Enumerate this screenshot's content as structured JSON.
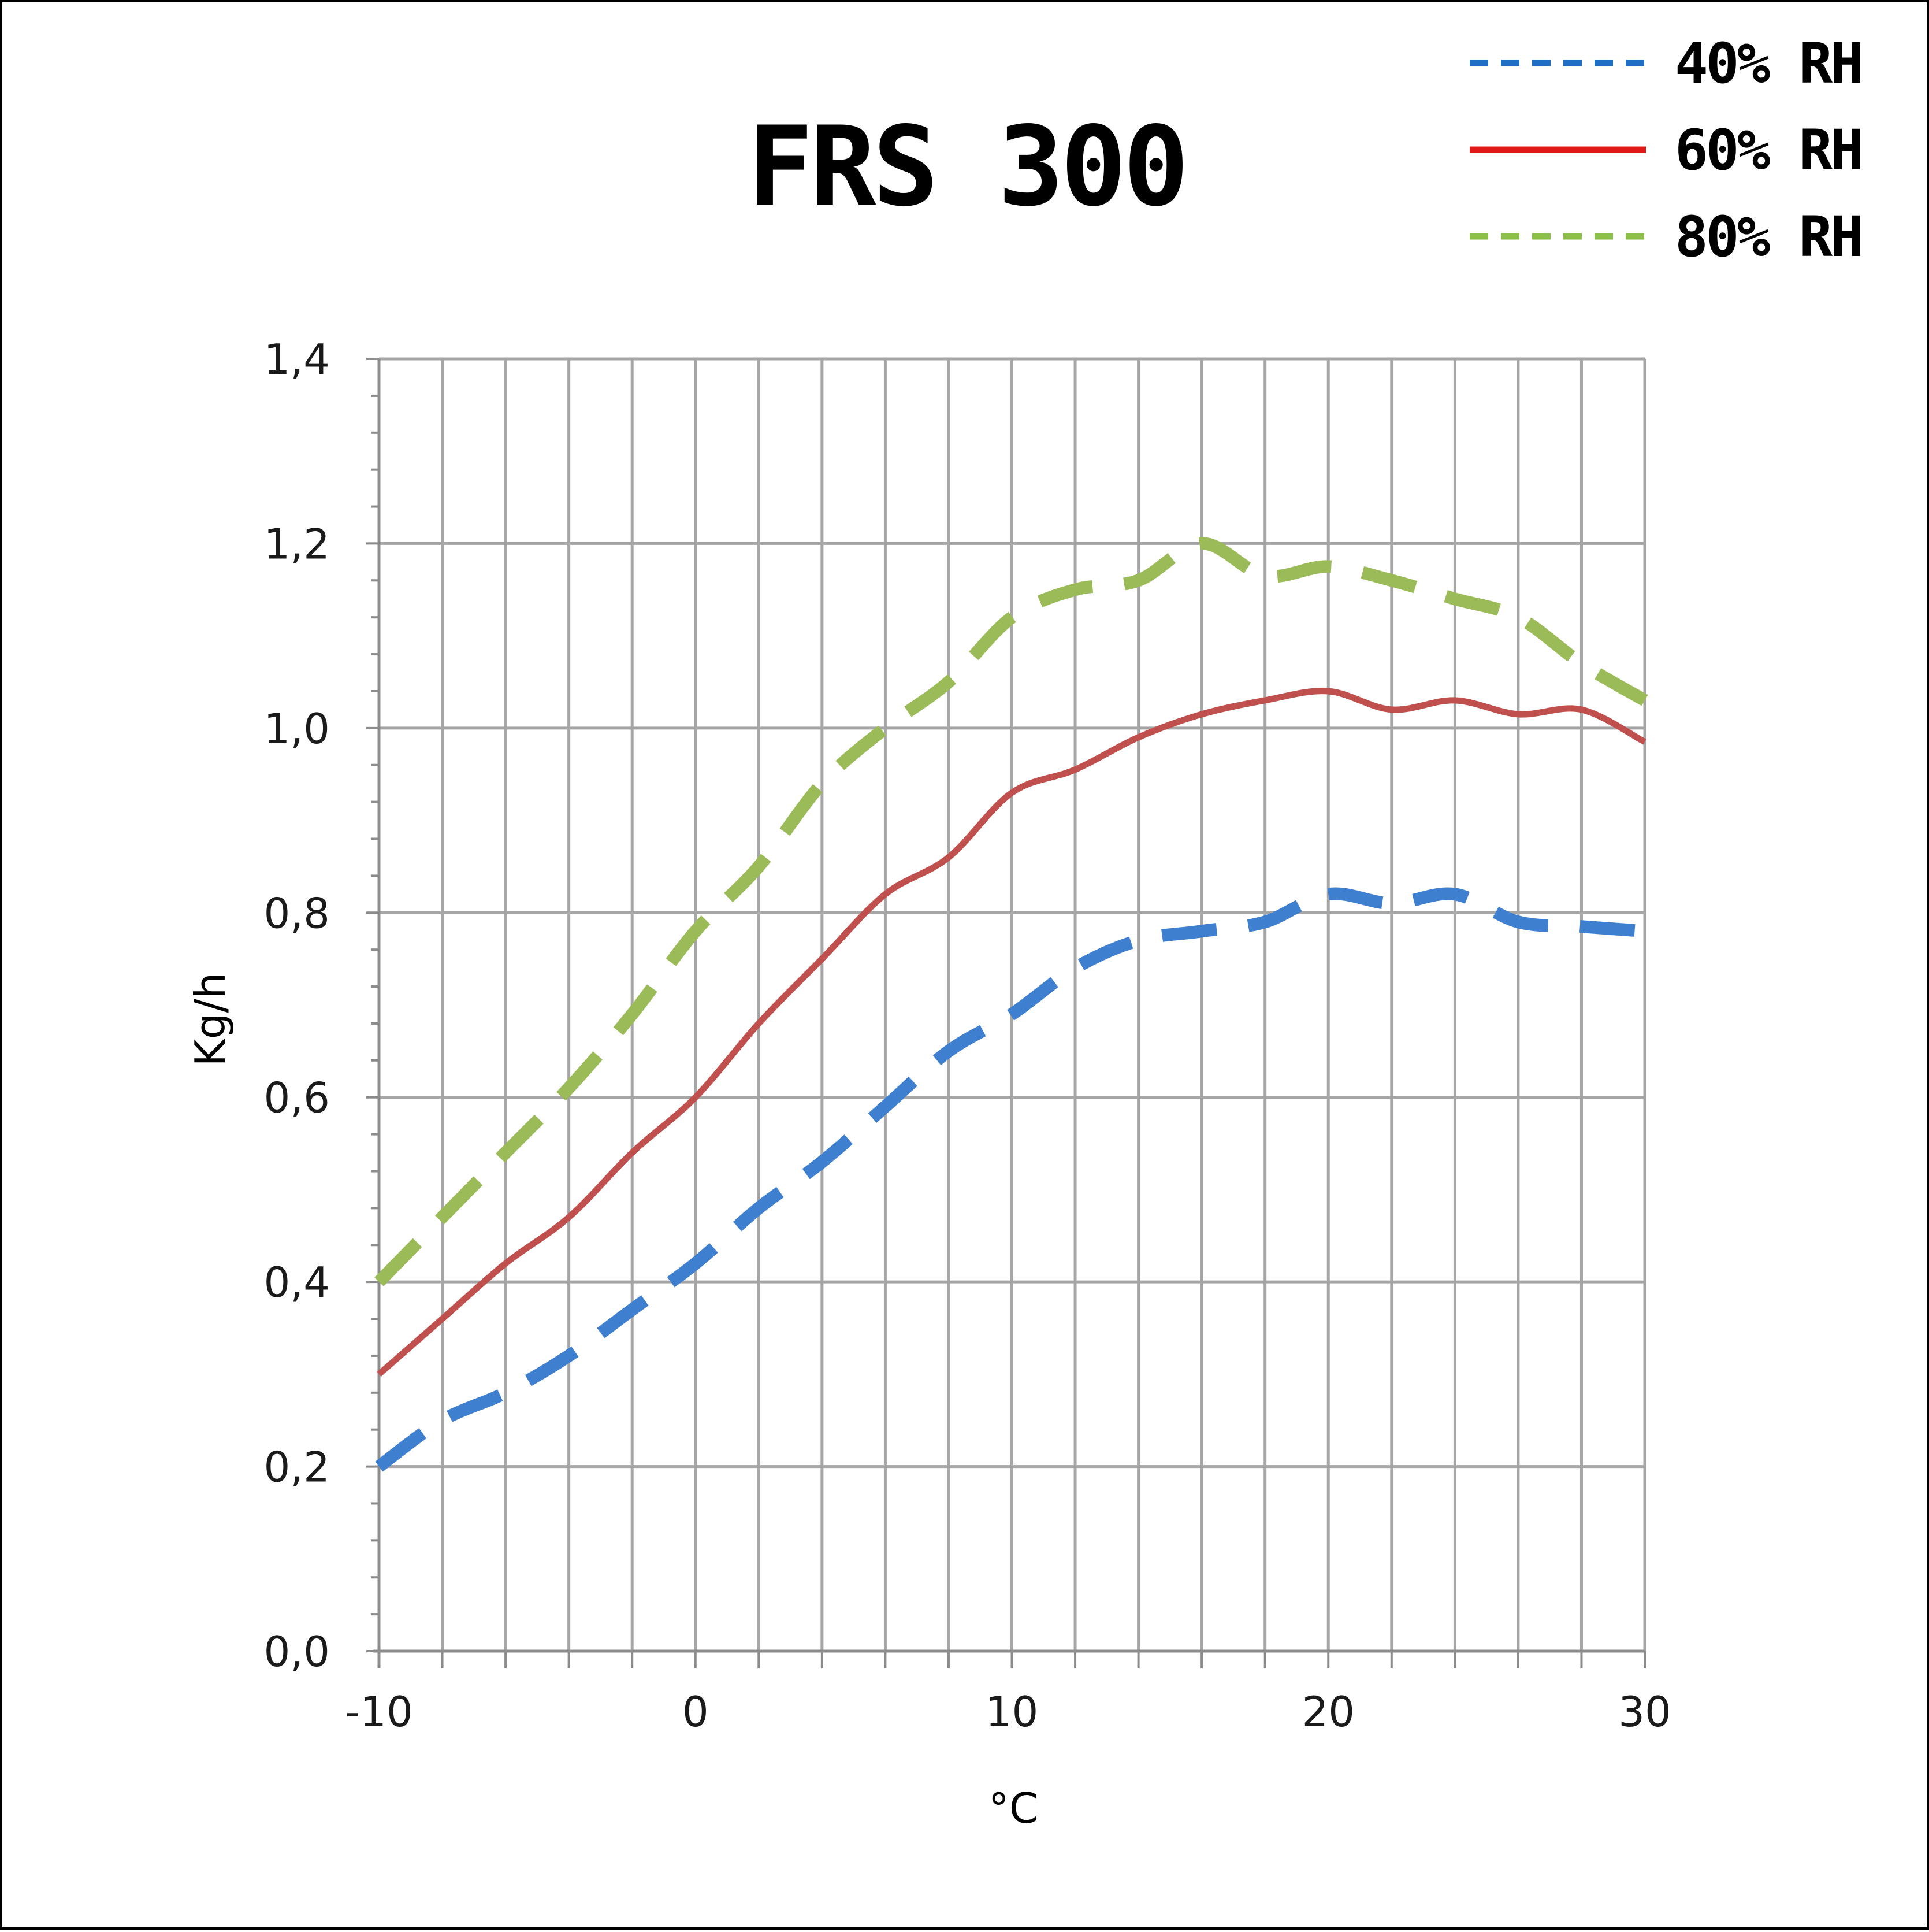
{
  "chart_data": {
    "type": "line",
    "title": "FRS 300",
    "xlabel": "°C",
    "ylabel": "Kg/h",
    "xlim": [
      -10,
      30
    ],
    "ylim": [
      0,
      1.4
    ],
    "x_ticks": [
      -10,
      0,
      10,
      20,
      30
    ],
    "x_tick_labels": [
      "-10",
      "0",
      "10",
      "20",
      "30"
    ],
    "y_ticks": [
      0,
      0.2,
      0.4,
      0.6,
      0.8,
      1.0,
      1.2,
      1.4
    ],
    "y_tick_labels": [
      "0,0",
      "0,2",
      "0,4",
      "0,6",
      "0,8",
      "1,0",
      "1,2",
      "1,4"
    ],
    "grid": true,
    "legend_position": "top-right",
    "series": [
      {
        "name": "40% RH",
        "color": "#3f7fcf",
        "legend_color": "#1f6fc4",
        "style": "dashed",
        "x": [
          -10,
          -8,
          -6,
          -4,
          -2,
          0,
          2,
          4,
          6,
          8,
          10,
          12,
          14,
          16,
          18,
          20,
          22,
          24,
          26,
          28,
          30
        ],
        "y": [
          0.2,
          0.25,
          0.28,
          0.32,
          0.37,
          0.42,
          0.48,
          0.53,
          0.59,
          0.65,
          0.69,
          0.74,
          0.77,
          0.78,
          0.79,
          0.82,
          0.81,
          0.82,
          0.79,
          0.785,
          0.78
        ]
      },
      {
        "name": "60% RH",
        "color": "#c0504d",
        "legend_color": "#e01818",
        "style": "solid",
        "x": [
          -10,
          -8,
          -6,
          -4,
          -2,
          0,
          2,
          4,
          6,
          8,
          10,
          12,
          14,
          16,
          18,
          20,
          22,
          24,
          26,
          28,
          30
        ],
        "y": [
          0.3,
          0.36,
          0.42,
          0.47,
          0.54,
          0.6,
          0.68,
          0.75,
          0.82,
          0.86,
          0.93,
          0.955,
          0.99,
          1.015,
          1.03,
          1.04,
          1.02,
          1.03,
          1.015,
          1.02,
          0.985
        ]
      },
      {
        "name": "80% RH",
        "color": "#9bbb59",
        "legend_color": "#8cc04a",
        "style": "dashed",
        "x": [
          -10,
          -8,
          -6,
          -4,
          -2,
          0,
          2,
          4,
          6,
          8,
          10,
          12,
          14,
          16,
          18,
          20,
          22,
          24,
          26,
          28,
          30
        ],
        "y": [
          0.4,
          0.47,
          0.54,
          0.61,
          0.69,
          0.78,
          0.85,
          0.94,
          1.0,
          1.05,
          1.12,
          1.15,
          1.16,
          1.2,
          1.165,
          1.175,
          1.16,
          1.14,
          1.12,
          1.07,
          1.03
        ]
      }
    ]
  }
}
